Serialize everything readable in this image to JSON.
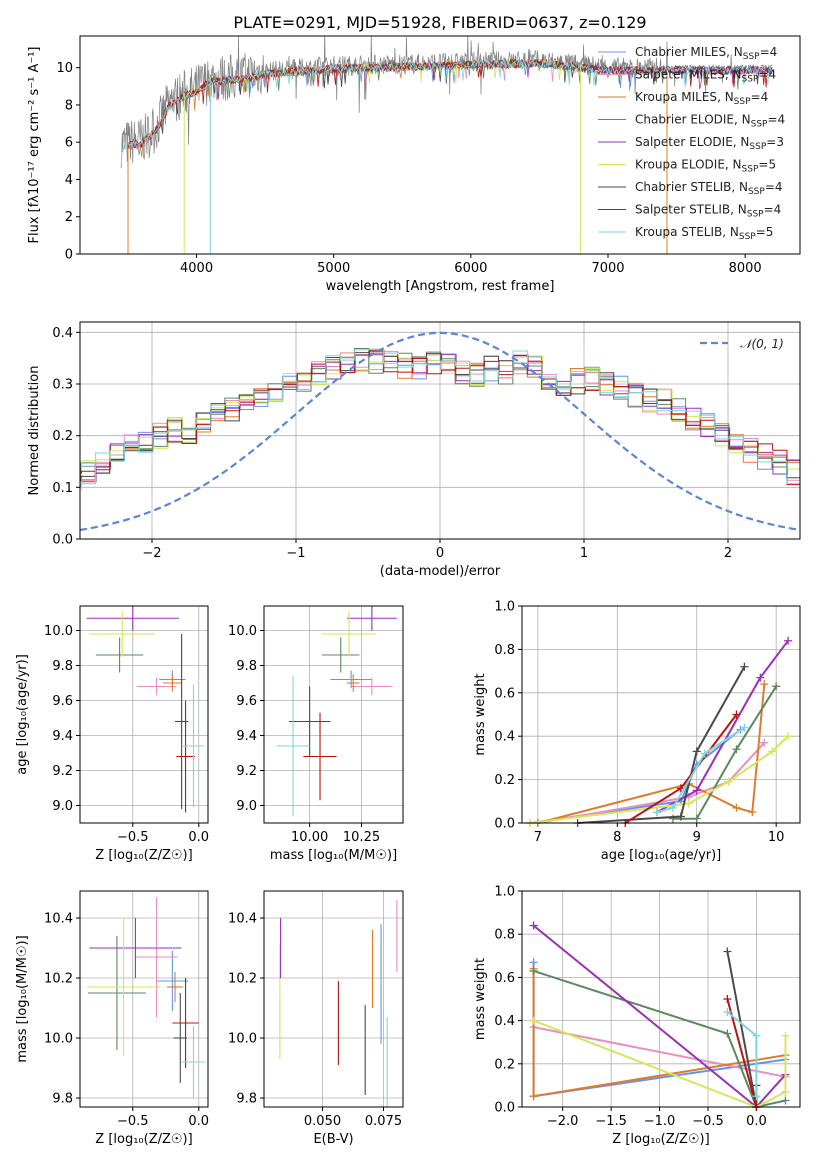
{
  "colors": {
    "Chabrier MILES": "#6495ed",
    "Salpeter MILES": "#e88fbe",
    "Kroupa MILES": "#e07b2a",
    "Chabrier ELODIE": "#5b8a5f",
    "Salpeter ELODIE": "#9b30b5",
    "Kroupa ELODIE": "#d4e65a",
    "Chabrier STELIB": "#4a4a4a",
    "Salpeter STELIB": "#b81414",
    "Kroupa STELIB": "#7fd6e0"
  },
  "chart_data": [
    {
      "id": "spectrum",
      "type": "line",
      "title": "PLATE=0291, MJD=51928, FIBERID=0637, z=0.129",
      "xlabel": "wavelength [Angstrom, rest frame]",
      "ylabel": "Flux [fλ10⁻¹⁷ erg cm⁻² s⁻¹ A⁻¹]",
      "xlim": [
        3150,
        8400
      ],
      "ylim": [
        0,
        11.7
      ],
      "xticks": [
        "4000",
        "5000",
        "6000",
        "7000",
        "8000"
      ],
      "yticks": [
        "0",
        "2",
        "4",
        "6",
        "8",
        "10"
      ],
      "legend_position": "top-right",
      "legend": [
        {
          "name": "Chabrier MILES",
          "nssp": "4"
        },
        {
          "name": "Salpeter MILES",
          "nssp": "4"
        },
        {
          "name": "Kroupa MILES",
          "nssp": "4"
        },
        {
          "name": "Chabrier ELODIE",
          "nssp": "4"
        },
        {
          "name": "Salpeter ELODIE",
          "nssp": "3"
        },
        {
          "name": "Kroupa ELODIE",
          "nssp": "5"
        },
        {
          "name": "Chabrier STELIB",
          "nssp": "4"
        },
        {
          "name": "Salpeter STELIB",
          "nssp": "4"
        },
        {
          "name": "Kroupa STELIB",
          "nssp": "5"
        }
      ],
      "continuum": [
        [
          3450,
          5.9
        ],
        [
          3600,
          6.1
        ],
        [
          3700,
          6.7
        ],
        [
          3800,
          8.1
        ],
        [
          3900,
          8.6
        ],
        [
          4000,
          8.9
        ],
        [
          4100,
          9.4
        ],
        [
          4300,
          9.5
        ],
        [
          4500,
          9.8
        ],
        [
          5000,
          10.1
        ],
        [
          5500,
          10.2
        ],
        [
          6000,
          10.3
        ],
        [
          6500,
          10.4
        ],
        [
          7000,
          10.0
        ],
        [
          7500,
          10.0
        ],
        [
          8000,
          10.0
        ],
        [
          8200,
          10.0
        ]
      ],
      "dropouts": [
        {
          "model": "Kroupa MILES",
          "x": 3500
        },
        {
          "model": "Kroupa ELODIE",
          "x": 3910
        },
        {
          "model": "Kroupa STELIB",
          "x": 4100
        },
        {
          "model": "Kroupa ELODIE",
          "x": 6800
        },
        {
          "model": "Kroupa MILES",
          "x": 7430
        }
      ]
    },
    {
      "id": "residuals",
      "type": "histogram",
      "xlabel": "(data-model)/error",
      "ylabel": "Normed distribution",
      "xlim": [
        -2.5,
        2.5
      ],
      "ylim": [
        0,
        0.42
      ],
      "xticks": [
        "−2",
        "−1",
        "0",
        "1",
        "2"
      ],
      "yticks": [
        "0.0",
        "0.1",
        "0.2",
        "0.3",
        "0.4"
      ],
      "legend_label": "𝒩(0, 1)",
      "legend_position": "top-right",
      "bin_width": 0.1,
      "base_shape": [
        0.055,
        0.045,
        0.04,
        0.05,
        0.06,
        0.08,
        0.1,
        0.115,
        0.11,
        0.115,
        0.13,
        0.145,
        0.16,
        0.18,
        0.19,
        0.2,
        0.21,
        0.2,
        0.22,
        0.24,
        0.25,
        0.26,
        0.27,
        0.28,
        0.3,
        0.31,
        0.32,
        0.33,
        0.34,
        0.35,
        0.345,
        0.34,
        0.335,
        0.33,
        0.34,
        0.335,
        0.325,
        0.32,
        0.33,
        0.325,
        0.34,
        0.33,
        0.3,
        0.295,
        0.305,
        0.31,
        0.3,
        0.29,
        0.28,
        0.27,
        0.265,
        0.25,
        0.235,
        0.22,
        0.2,
        0.185,
        0.17,
        0.16,
        0.15,
        0.13,
        0.12,
        0.11,
        0.1,
        0.09,
        0.085,
        0.08,
        0.07,
        0.06,
        0.055,
        0.045
      ]
    },
    {
      "id": "age-vs-Z",
      "type": "errorbar",
      "xlabel": "Z [log₁₀(Z/Z☉)]",
      "ylabel": "age  [log₁₀(age/yr)]",
      "xlim": [
        -0.9,
        0.07
      ],
      "ylim": [
        8.9,
        10.14
      ],
      "xticks": [
        "−0.5",
        "0.0"
      ],
      "yticks": [
        "9.0",
        "9.2",
        "9.4",
        "9.6",
        "9.8",
        "10.0"
      ],
      "points": [
        {
          "model": "Chabrier MILES",
          "x": -0.2,
          "y": 9.72,
          "xerr": 0.1,
          "yerr": 0.05
        },
        {
          "model": "Salpeter MILES",
          "x": -0.32,
          "y": 9.68,
          "xerr": 0.15,
          "yerr": 0.05
        },
        {
          "model": "Kroupa MILES",
          "x": -0.2,
          "y": 9.7,
          "xerr": 0.07,
          "yerr": 0.05
        },
        {
          "model": "Chabrier ELODIE",
          "x": -0.6,
          "y": 9.86,
          "xerr": 0.18,
          "yerr": 0.1
        },
        {
          "model": "Salpeter ELODIE",
          "x": -0.5,
          "y": 10.07,
          "xerr": 0.35,
          "yerr": 0.07
        },
        {
          "model": "Kroupa ELODIE",
          "x": -0.58,
          "y": 9.98,
          "xerr": 0.25,
          "yerr": 0.13
        },
        {
          "model": "Chabrier STELIB",
          "x": -0.13,
          "y": 9.48,
          "xerr": 0.05,
          "yerr": 0.5
        },
        {
          "model": "Salpeter STELIB",
          "x": -0.1,
          "y": 9.28,
          "xerr": 0.07,
          "yerr": 0.32
        },
        {
          "model": "Kroupa STELIB",
          "x": -0.04,
          "y": 9.34,
          "xerr": 0.08,
          "yerr": 0.35
        }
      ]
    },
    {
      "id": "age-vs-mass",
      "type": "errorbar",
      "xlabel": "mass [log₁₀(M/M☉)]",
      "ylabel": "",
      "xlim": [
        9.78,
        10.45
      ],
      "ylim": [
        8.9,
        10.14
      ],
      "xticks": [
        "10.00",
        "10.25"
      ],
      "yticks": [
        "9.0",
        "9.2",
        "9.4",
        "9.6",
        "9.8",
        "10.0"
      ],
      "points": [
        {
          "model": "Chabrier MILES",
          "x": 10.2,
          "y": 9.72,
          "xerr": 0.1,
          "yerr": 0.05
        },
        {
          "model": "Salpeter MILES",
          "x": 10.3,
          "y": 9.68,
          "xerr": 0.1,
          "yerr": 0.05
        },
        {
          "model": "Kroupa MILES",
          "x": 10.21,
          "y": 9.7,
          "xerr": 0.03,
          "yerr": 0.05
        },
        {
          "model": "Chabrier ELODIE",
          "x": 10.15,
          "y": 9.86,
          "xerr": 0.09,
          "yerr": 0.1
        },
        {
          "model": "Salpeter ELODIE",
          "x": 10.3,
          "y": 10.07,
          "xerr": 0.12,
          "yerr": 0.07
        },
        {
          "model": "Kroupa ELODIE",
          "x": 10.19,
          "y": 9.98,
          "xerr": 0.13,
          "yerr": 0.13
        },
        {
          "model": "Chabrier STELIB",
          "x": 10.0,
          "y": 9.48,
          "xerr": 0.1,
          "yerr": 0.2
        },
        {
          "model": "Salpeter STELIB",
          "x": 10.05,
          "y": 9.28,
          "xerr": 0.08,
          "yerr": 0.25
        },
        {
          "model": "Kroupa STELIB",
          "x": 9.92,
          "y": 9.34,
          "xerr": 0.08,
          "yerr": 0.4
        }
      ]
    },
    {
      "id": "mass-vs-Z",
      "type": "errorbar",
      "xlabel": "Z [log₁₀(Z/Z☉)]",
      "ylabel": "mass [log₁₀(M/M☉)]",
      "xlim": [
        -0.9,
        0.07
      ],
      "ylim": [
        9.77,
        10.49
      ],
      "xticks": [
        "−0.5",
        "0.0"
      ],
      "yticks": [
        "9.8",
        "10.0",
        "10.2",
        "10.4"
      ],
      "points": [
        {
          "model": "Chabrier MILES",
          "x": -0.2,
          "y": 10.19,
          "xerr": 0.12,
          "yerr": 0.1
        },
        {
          "model": "Salpeter MILES",
          "x": -0.32,
          "y": 10.27,
          "xerr": 0.16,
          "yerr": 0.2
        },
        {
          "model": "Kroupa MILES",
          "x": -0.18,
          "y": 10.17,
          "xerr": 0.06,
          "yerr": 0.05
        },
        {
          "model": "Chabrier ELODIE",
          "x": -0.62,
          "y": 10.15,
          "xerr": 0.22,
          "yerr": 0.19
        },
        {
          "model": "Salpeter ELODIE",
          "x": -0.48,
          "y": 10.3,
          "xerr": 0.35,
          "yerr": 0.1
        },
        {
          "model": "Kroupa ELODIE",
          "x": -0.57,
          "y": 10.17,
          "xerr": 0.28,
          "yerr": 0.23
        },
        {
          "model": "Chabrier STELIB",
          "x": -0.14,
          "y": 10.0,
          "xerr": 0.05,
          "yerr": 0.15
        },
        {
          "model": "Salpeter STELIB",
          "x": -0.1,
          "y": 10.05,
          "xerr": 0.1,
          "yerr": 0.15
        },
        {
          "model": "Kroupa STELIB",
          "x": -0.04,
          "y": 9.92,
          "xerr": 0.09,
          "yerr": 0.12
        }
      ]
    },
    {
      "id": "mass-vs-EBV",
      "type": "errorbar",
      "xlabel": "E(B-V)",
      "ylabel": "",
      "xlim": [
        0.026,
        0.083
      ],
      "ylim": [
        9.77,
        10.49
      ],
      "xticks": [
        "0.050",
        "0.075"
      ],
      "yticks": [
        "9.8",
        "10.0",
        "10.2",
        "10.4"
      ],
      "points": [
        {
          "model": "Kroupa ELODIE",
          "x": 0.0325,
          "y": 10.12,
          "xerr": 0,
          "yerr": 0.19
        },
        {
          "model": "Salpeter ELODIE",
          "x": 0.0328,
          "y": 10.3,
          "xerr": 0,
          "yerr": 0.1
        },
        {
          "model": "Salpeter STELIB",
          "x": 0.0565,
          "y": 10.05,
          "xerr": 0,
          "yerr": 0.14
        },
        {
          "model": "Chabrier STELIB",
          "x": 0.0675,
          "y": 9.96,
          "xerr": 0,
          "yerr": 0.15
        },
        {
          "model": "Kroupa MILES",
          "x": 0.0705,
          "y": 10.23,
          "xerr": 0,
          "yerr": 0.13
        },
        {
          "model": "Chabrier MILES",
          "x": 0.074,
          "y": 10.18,
          "xerr": 0,
          "yerr": 0.2
        },
        {
          "model": "Kroupa STELIB",
          "x": 0.0765,
          "y": 9.92,
          "xerr": 0,
          "yerr": 0.15
        },
        {
          "model": "Salpeter MILES",
          "x": 0.0805,
          "y": 10.34,
          "xerr": 0,
          "yerr": 0.12
        }
      ]
    },
    {
      "id": "weight-vs-age",
      "type": "line",
      "xlabel": "age  [log₁₀(age/yr)]",
      "ylabel": "mass weight",
      "xlim": [
        6.8,
        10.3
      ],
      "ylim": [
        0,
        1.0
      ],
      "xticks": [
        "7",
        "8",
        "9",
        "10"
      ],
      "yticks": [
        "0.0",
        "0.2",
        "0.4",
        "0.6",
        "0.8",
        "1.0"
      ],
      "series": [
        {
          "model": "Chabrier MILES",
          "x": [
            6.9,
            8.8,
            9.0,
            9.55
          ],
          "y": [
            0.0,
            0.1,
            0.27,
            0.43
          ]
        },
        {
          "model": "Salpeter MILES",
          "x": [
            7.0,
            8.9,
            9.4,
            9.85
          ],
          "y": [
            0.0,
            0.12,
            0.19,
            0.37
          ]
        },
        {
          "model": "Kroupa MILES",
          "x": [
            7.0,
            8.9,
            9.5,
            9.7,
            9.85
          ],
          "y": [
            0.0,
            0.18,
            0.07,
            0.05,
            0.64
          ]
        },
        {
          "model": "Chabrier ELODIE",
          "x": [
            8.7,
            9.0,
            9.5,
            10.0
          ],
          "y": [
            0.02,
            0.02,
            0.34,
            0.63
          ]
        },
        {
          "model": "Salpeter ELODIE",
          "x": [
            8.5,
            9.0,
            9.8,
            10.15
          ],
          "y": [
            0.05,
            0.15,
            0.67,
            0.84
          ]
        },
        {
          "model": "Kroupa ELODIE",
          "x": [
            6.9,
            8.9,
            9.4,
            9.95,
            10.15
          ],
          "y": [
            0.0,
            0.09,
            0.19,
            0.33,
            0.4
          ]
        },
        {
          "model": "Chabrier STELIB",
          "x": [
            7.5,
            8.8,
            9.0,
            9.6
          ],
          "y": [
            0.0,
            0.03,
            0.33,
            0.72
          ]
        },
        {
          "model": "Salpeter STELIB",
          "x": [
            8.1,
            8.8,
            9.5
          ],
          "y": [
            0.0,
            0.16,
            0.5
          ]
        },
        {
          "model": "Kroupa STELIB",
          "x": [
            8.5,
            8.7,
            9.1,
            9.6
          ],
          "y": [
            0.05,
            0.07,
            0.32,
            0.44
          ]
        }
      ]
    },
    {
      "id": "weight-vs-Z",
      "type": "line",
      "xlabel": "Z [log₁₀(Z/Z☉)]",
      "ylabel": "mass weight",
      "xlim": [
        -2.42,
        0.45
      ],
      "ylim": [
        0,
        1.0
      ],
      "xticks": [
        "−2.0",
        "−1.5",
        "−1.0",
        "−0.5",
        "0.0"
      ],
      "yticks": [
        "0.0",
        "0.2",
        "0.4",
        "0.6",
        "0.8",
        "1.0"
      ],
      "series": [
        {
          "model": "Chabrier MILES",
          "x": [
            -2.3,
            -2.3,
            0.3
          ],
          "y": [
            0.67,
            0.05,
            0.22
          ]
        },
        {
          "model": "Salpeter MILES",
          "x": [
            -2.3,
            0.3
          ],
          "y": [
            0.37,
            0.14
          ]
        },
        {
          "model": "Kroupa MILES",
          "x": [
            -2.3,
            -2.3,
            0.3,
            0.3
          ],
          "y": [
            0.64,
            0.05,
            0.24,
            0.07
          ]
        },
        {
          "model": "Chabrier ELODIE",
          "x": [
            -2.3,
            -0.3,
            0.0,
            0.3
          ],
          "y": [
            0.63,
            0.34,
            0.0,
            0.03
          ]
        },
        {
          "model": "Salpeter ELODIE",
          "x": [
            -2.3,
            0.0,
            0.3
          ],
          "y": [
            0.84,
            0.0,
            0.15
          ]
        },
        {
          "model": "Kroupa ELODIE",
          "x": [
            -2.3,
            0.0,
            0.3,
            0.3
          ],
          "y": [
            0.4,
            0.0,
            0.07,
            0.33
          ]
        },
        {
          "model": "Chabrier STELIB",
          "x": [
            -0.3,
            0.0,
            0.0
          ],
          "y": [
            0.72,
            0.0,
            0.1
          ]
        },
        {
          "model": "Salpeter STELIB",
          "x": [
            -0.3,
            0.0
          ],
          "y": [
            0.5,
            0.0
          ]
        },
        {
          "model": "Kroupa STELIB",
          "x": [
            -0.3,
            0.0,
            0.0
          ],
          "y": [
            0.44,
            0.33,
            0.05
          ]
        }
      ]
    }
  ]
}
